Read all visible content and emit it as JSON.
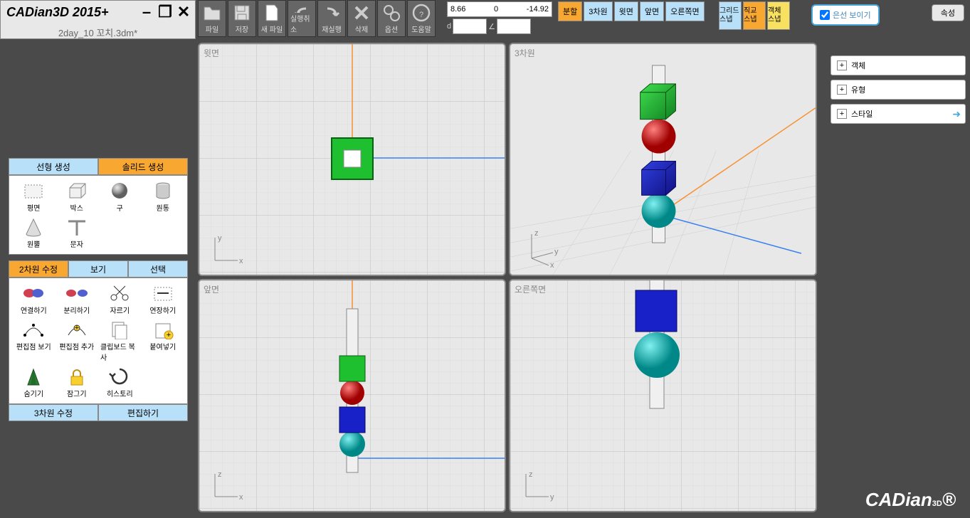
{
  "app": {
    "title": "CADian3D 2015+",
    "filename": "2day_10 꼬치.3dm*",
    "logo": "CADian3D"
  },
  "coords": {
    "x": "8.66",
    "y": "0",
    "z": "-14.92",
    "d_label": "d",
    "a_label": "∠"
  },
  "toolbar": [
    {
      "id": "file",
      "label": "파일"
    },
    {
      "id": "save",
      "label": "저장"
    },
    {
      "id": "newfile",
      "label": "새 파일"
    },
    {
      "id": "undo",
      "label": "실행취소"
    },
    {
      "id": "redo",
      "label": "재실행"
    },
    {
      "id": "delete",
      "label": "삭제"
    },
    {
      "id": "options",
      "label": "옵션"
    },
    {
      "id": "help",
      "label": "도움말"
    }
  ],
  "view_buttons": [
    {
      "id": "split",
      "label": "분할",
      "active": true
    },
    {
      "id": "3d",
      "label": "3차원"
    },
    {
      "id": "top",
      "label": "윗면"
    },
    {
      "id": "front",
      "label": "앞면"
    },
    {
      "id": "right",
      "label": "오른쪽면"
    }
  ],
  "snap_buttons": [
    {
      "id": "grid-snap",
      "label": "그리드\n스냅",
      "cls": "s1"
    },
    {
      "id": "ortho-snap",
      "label": "직교\n스냅",
      "cls": "s2"
    },
    {
      "id": "obj-snap",
      "label": "객체\n스냅",
      "cls": "s3"
    }
  ],
  "hidden_line": {
    "label": "은선 보이기",
    "checked": true
  },
  "attr_btn": "속성",
  "tabs1": [
    {
      "id": "line-create",
      "label": "선형 생성",
      "cls": "blue"
    },
    {
      "id": "solid-create",
      "label": "솔리드 생성",
      "cls": "orange"
    }
  ],
  "tools1": [
    {
      "id": "plane",
      "label": "평면"
    },
    {
      "id": "box",
      "label": "박스"
    },
    {
      "id": "sphere",
      "label": "구"
    },
    {
      "id": "cylinder",
      "label": "원통"
    },
    {
      "id": "cone",
      "label": "원뿔"
    },
    {
      "id": "text",
      "label": "문자"
    }
  ],
  "tabs2": [
    {
      "id": "2d-edit",
      "label": "2차원 수정",
      "cls": "orange"
    },
    {
      "id": "view",
      "label": "보기",
      "cls": "blue"
    },
    {
      "id": "select",
      "label": "선택",
      "cls": "blue"
    }
  ],
  "tools2": [
    {
      "id": "join",
      "label": "연결하기"
    },
    {
      "id": "separate",
      "label": "분리하기"
    },
    {
      "id": "cut",
      "label": "자르기"
    },
    {
      "id": "extend",
      "label": "연장하기"
    },
    {
      "id": "show-pts",
      "label": "편집점 보기"
    },
    {
      "id": "add-pts",
      "label": "편집점 추가"
    },
    {
      "id": "clipboard",
      "label": "클립보드 복사"
    },
    {
      "id": "paste",
      "label": "붙여넣기"
    },
    {
      "id": "hide",
      "label": "숨기기"
    },
    {
      "id": "lock",
      "label": "잠그기"
    },
    {
      "id": "history",
      "label": "히스토리"
    }
  ],
  "tabs3": [
    {
      "id": "3d-edit",
      "label": "3차원 수정",
      "cls": "blue"
    },
    {
      "id": "edit",
      "label": "편집하기",
      "cls": "blue"
    }
  ],
  "viewports": [
    {
      "id": "top",
      "label": "윗면",
      "ax1": "y",
      "ax2": "x"
    },
    {
      "id": "3d",
      "label": "3차원",
      "ax1": "z",
      "ax2": "y",
      "ax3": "x"
    },
    {
      "id": "front",
      "label": "앞면",
      "ax1": "z",
      "ax2": "x"
    },
    {
      "id": "right",
      "label": "오른쪽면",
      "ax1": "z",
      "ax2": "y"
    }
  ],
  "right_panel": [
    {
      "id": "object",
      "label": "객체"
    },
    {
      "id": "type",
      "label": "유형"
    },
    {
      "id": "style",
      "label": "스타일",
      "arrow": true
    }
  ],
  "colors": {
    "green": "#1ec030",
    "red": "#e02020",
    "blue": "#1820c8",
    "cyan": "#20c0c8",
    "grid": "#d0d0d0",
    "grid_major": "#b8b8b8",
    "axis_orange": "#f89030",
    "axis_blue": "#3880f0",
    "bg": "#e8e8e8",
    "sel": "#f8a830"
  }
}
